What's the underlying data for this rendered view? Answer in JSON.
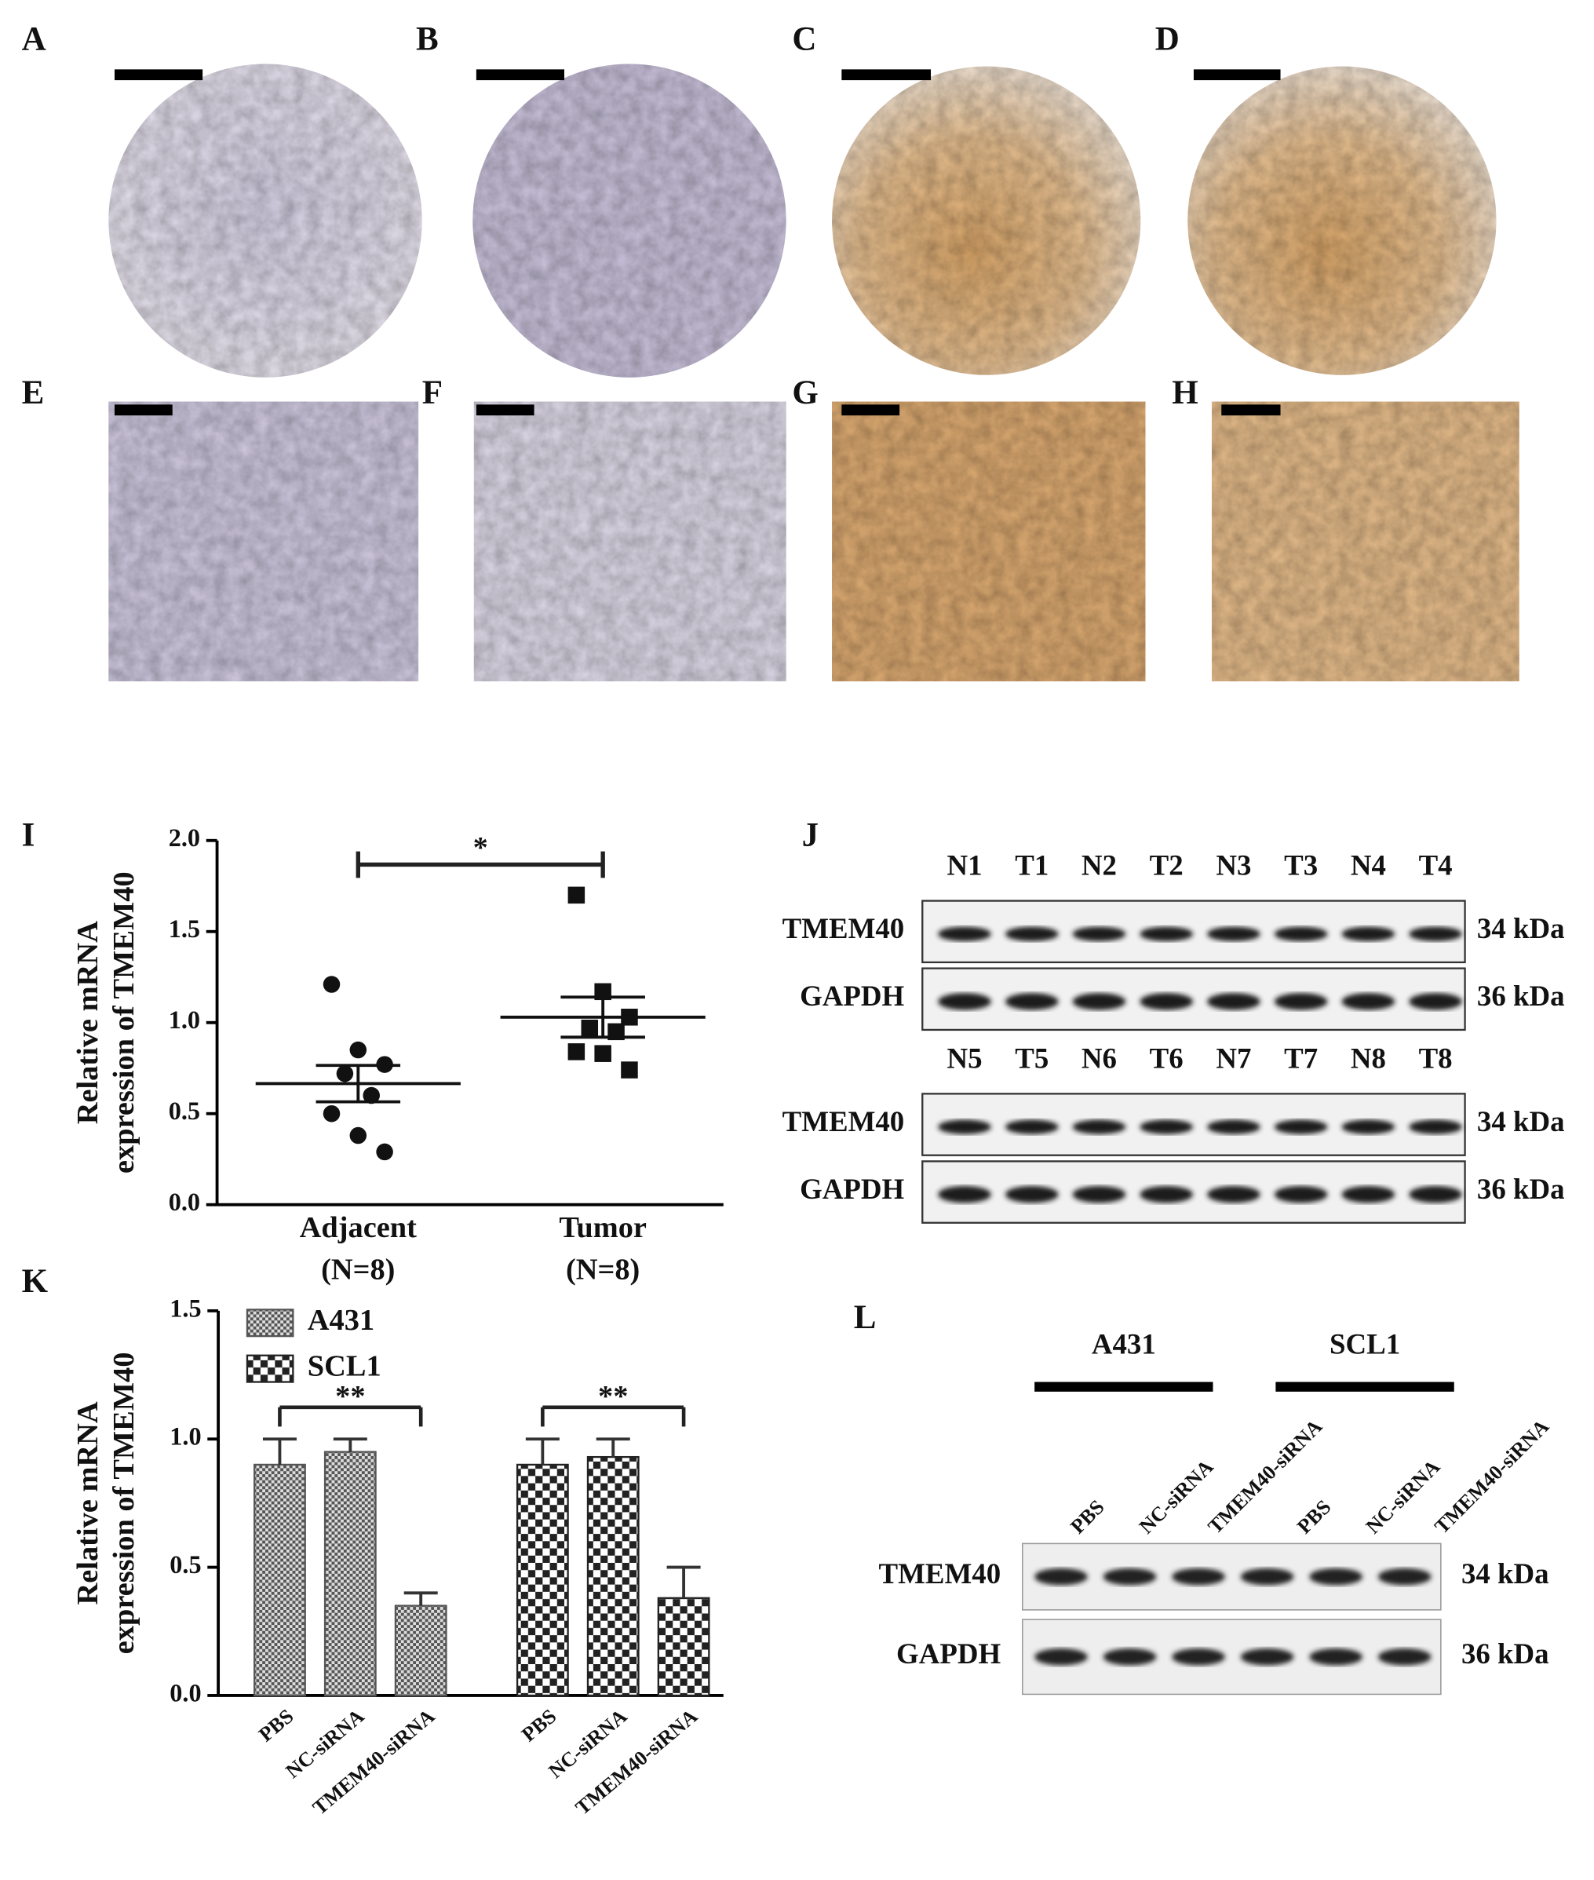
{
  "panel_labels": [
    "A",
    "B",
    "C",
    "D",
    "E",
    "F",
    "G",
    "H",
    "I",
    "J",
    "K",
    "L"
  ],
  "chart_data": [
    {
      "type": "scatter",
      "categories": [
        "Adjacent",
        "Tumor"
      ],
      "category_counts": [
        "(N=8)",
        "(N=8)"
      ],
      "ylabel": [
        "Relative mRNA",
        "expression of TMEM40"
      ],
      "series": [
        {
          "marker": "circle",
          "color": "#111111",
          "values": [
            1.21,
            0.85,
            0.77,
            0.72,
            0.6,
            0.5,
            0.38,
            0.29
          ],
          "mean": 0.665,
          "sem": 0.1
        },
        {
          "marker": "square",
          "color": "#111111",
          "values": [
            1.7,
            1.17,
            1.03,
            0.97,
            0.95,
            0.84,
            0.83,
            0.74
          ],
          "mean": 1.03,
          "sem": 0.11
        }
      ],
      "ylim": [
        0,
        2
      ],
      "yticks": [
        {
          "value": 0,
          "label": "0.0"
        },
        0.5,
        {
          "value": 1,
          "label": "1.0"
        },
        1.5,
        {
          "value": 2,
          "label": "2.0"
        }
      ],
      "annotations": [
        "*"
      ]
    },
    {
      "type": "bar",
      "categories": [
        "PBS",
        "NC-siRNA",
        "TMEM40-siRNA"
      ],
      "ylabel": [
        "Relative mRNA",
        "expression of TMEM40"
      ],
      "series": [
        {
          "name": "A431",
          "color": "#555555",
          "pattern": "fine",
          "values": [
            0.9,
            0.95,
            0.35
          ],
          "errors": [
            0.1,
            0.05,
            0.05
          ]
        },
        {
          "name": "SCL1",
          "color": "#222222",
          "pattern": "coarse",
          "values": [
            0.9,
            0.93,
            0.38
          ],
          "errors": [
            0.1,
            0.07,
            0.12
          ]
        }
      ],
      "ylim": [
        0,
        1.5
      ],
      "yticks": [
        {
          "value": 0,
          "label": "0.0"
        },
        0.5,
        {
          "value": 1,
          "label": "1.0"
        },
        1.5
      ],
      "legend": "top-left",
      "annotations": [
        "**",
        "**"
      ]
    }
  ],
  "blot_j": {
    "rows": [
      {
        "lanes": [
          "N1",
          "T1",
          "N2",
          "T2",
          "N3",
          "T3",
          "N4",
          "T4"
        ],
        "proteins": [
          "TMEM40",
          "GAPDH"
        ],
        "sizes": [
          "34 kDa",
          "36 kDa"
        ]
      },
      {
        "lanes": [
          "N5",
          "T5",
          "N6",
          "T6",
          "N7",
          "T7",
          "N8",
          "T8"
        ],
        "proteins": [
          "TMEM40",
          "GAPDH"
        ],
        "sizes": [
          "34 kDa",
          "36 kDa"
        ]
      }
    ]
  },
  "blot_l": {
    "groups": [
      "A431",
      "SCL1"
    ],
    "lanes": [
      "PBS",
      "NC-siRNA",
      "TMEM40-siRNA"
    ],
    "proteins": [
      "TMEM40",
      "GAPDH"
    ],
    "sizes": [
      "34 kDa",
      "36 kDa"
    ]
  }
}
